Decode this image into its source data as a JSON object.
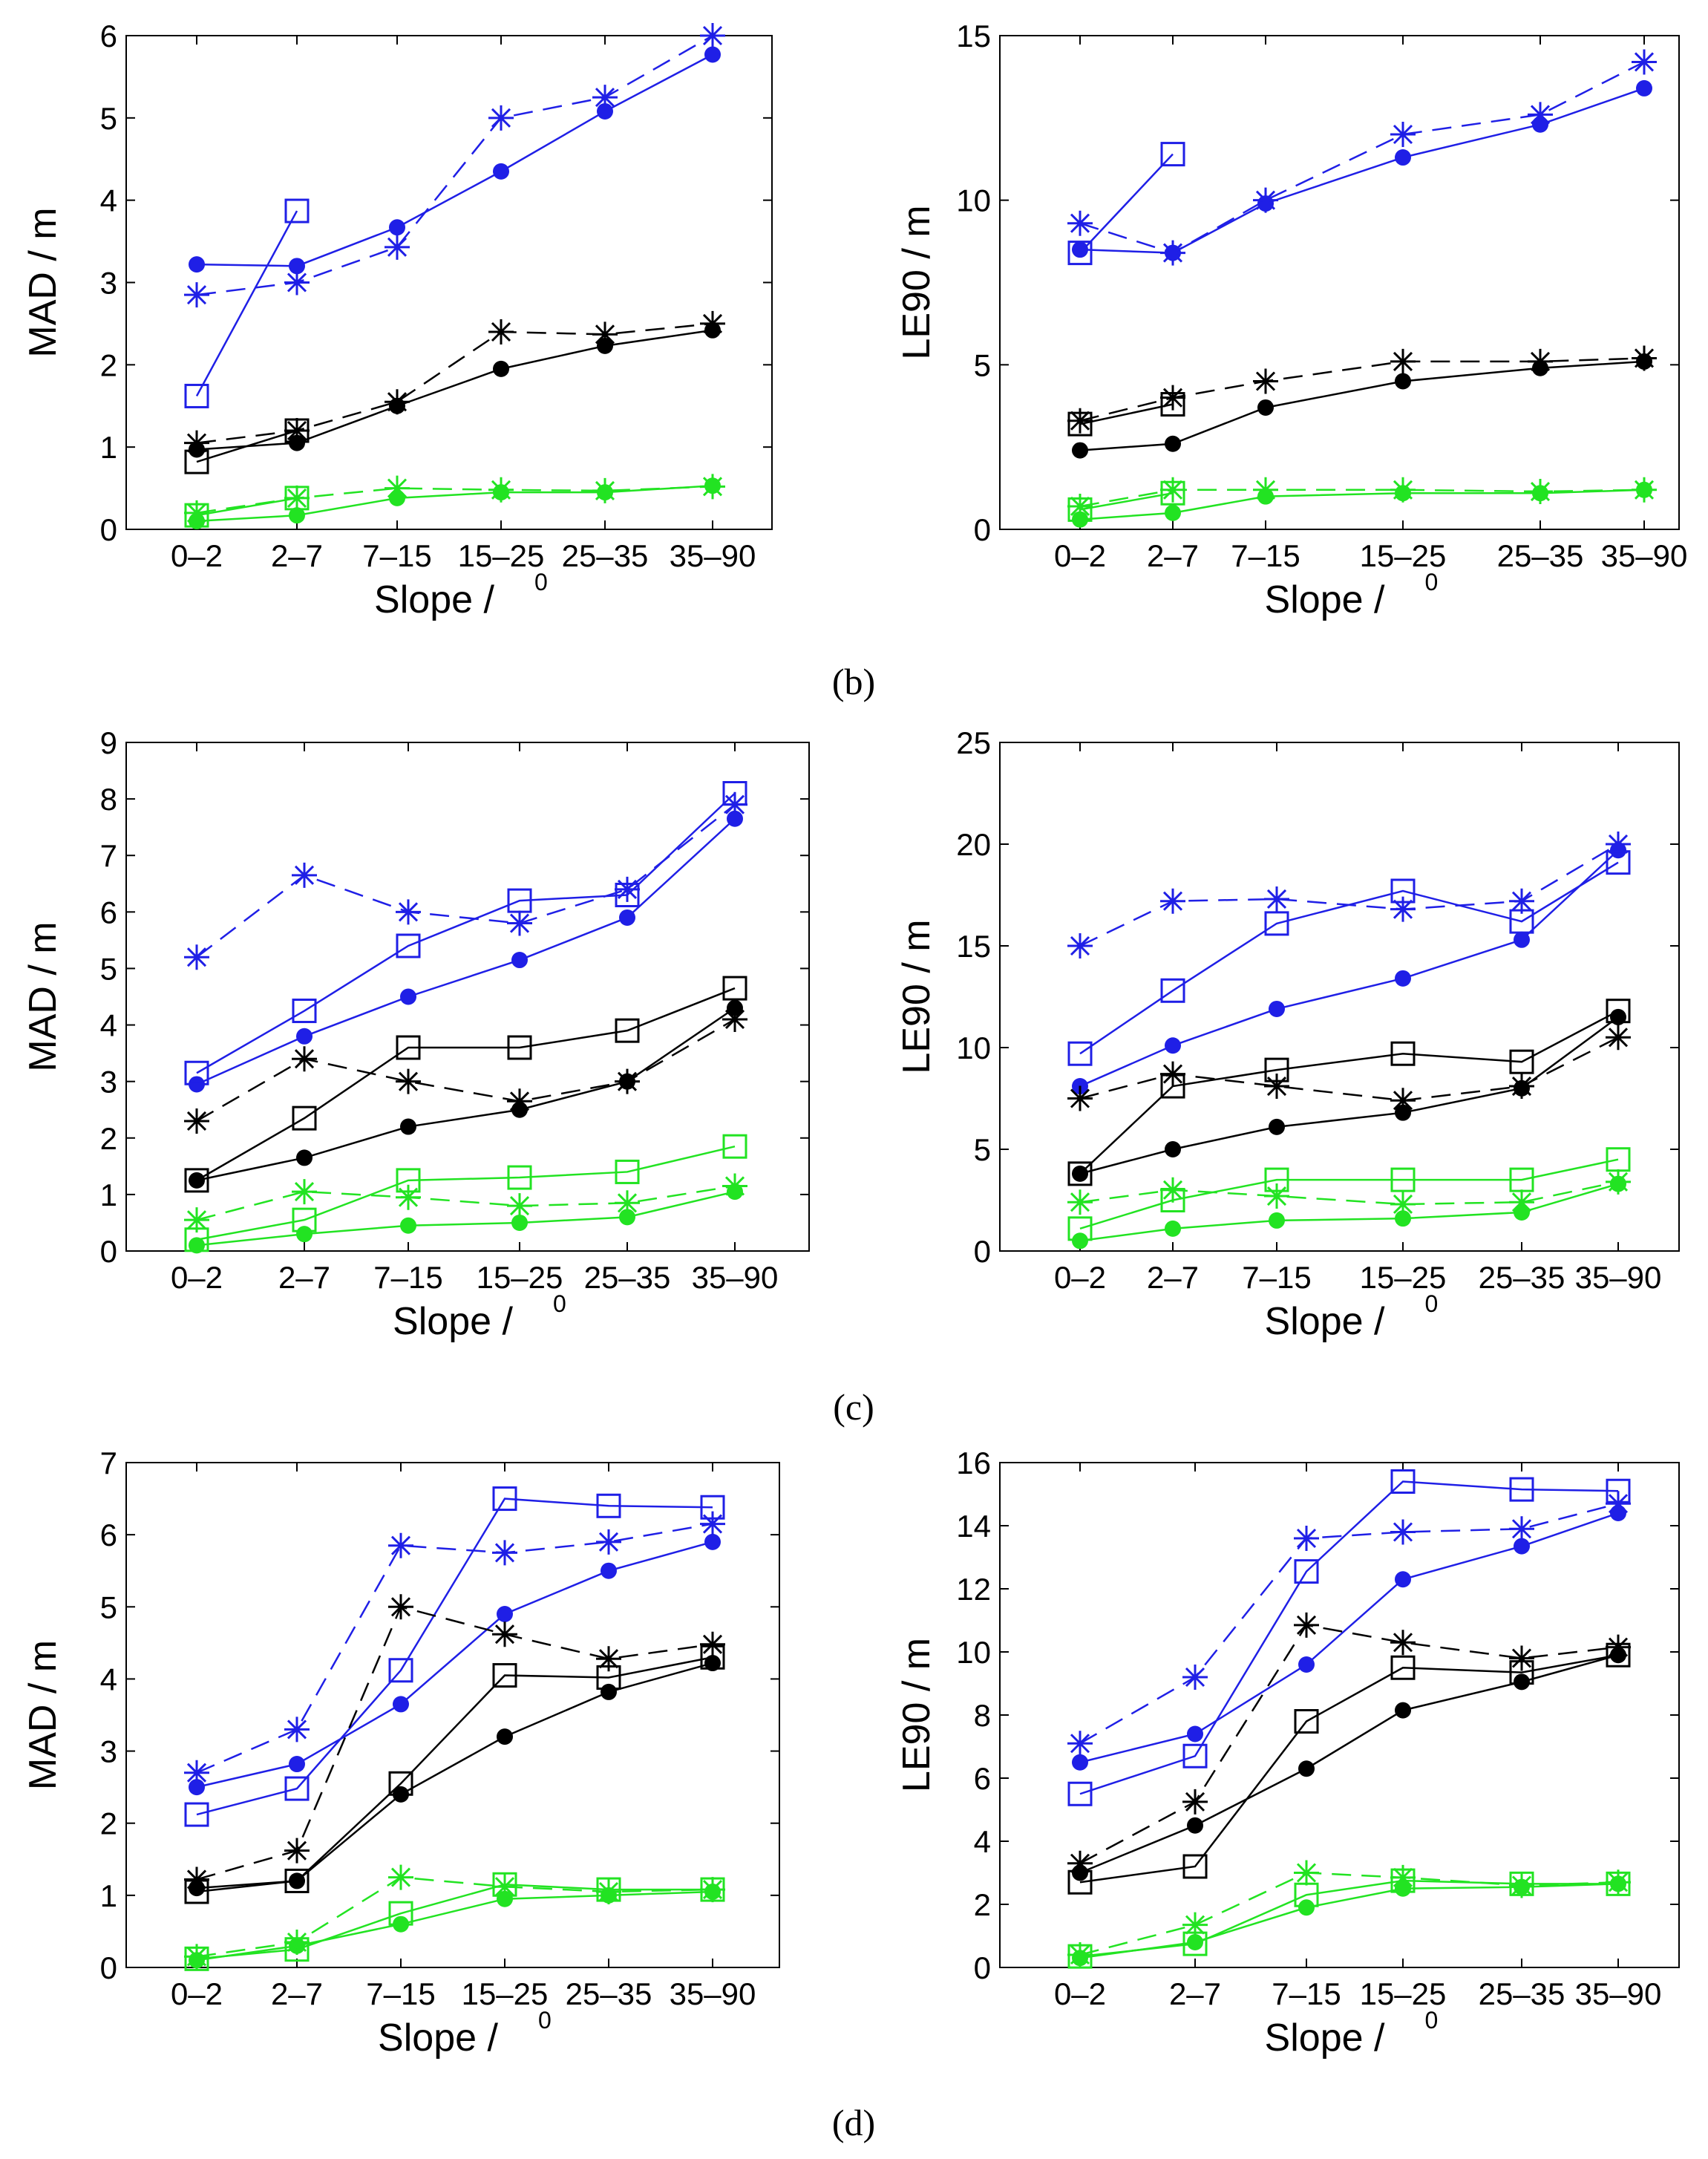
{
  "figure": {
    "captions": [
      "(b)",
      "(c)",
      "(d)"
    ]
  },
  "series_legend": {
    "colors": {
      "blue": "#1f1fe6",
      "black": "#000000",
      "green": "#22e322"
    },
    "markers": [
      "filled-circle",
      "asterisk",
      "open-square"
    ]
  },
  "chart_data": [
    {
      "type": "line",
      "panel": "b-left",
      "categories": [
        "0–2",
        "2–7",
        "7–15",
        "15–25",
        "25–35",
        "35–90"
      ],
      "xlabel": "Slope /",
      "xlabel_sup": "0",
      "ylabel": "MAD / m",
      "ylim": [
        0,
        6
      ],
      "yticks": [
        0,
        1,
        2,
        3,
        4,
        5,
        6
      ],
      "ytick_labels": [
        "0",
        "1",
        "2",
        "3",
        "4",
        "5",
        "6"
      ],
      "series": [
        {
          "color": "#1f1fe6",
          "marker": "circle",
          "dash": false,
          "values": [
            3.22,
            3.2,
            3.67,
            4.35,
            5.08,
            5.77
          ]
        },
        {
          "color": "#1f1fe6",
          "marker": "star",
          "dash": true,
          "values": [
            2.85,
            3.0,
            3.43,
            5.0,
            5.25,
            6.0
          ]
        },
        {
          "color": "#1f1fe6",
          "marker": "square",
          "dash": false,
          "values": [
            1.62,
            3.87,
            null,
            null,
            null,
            null
          ]
        },
        {
          "color": "#000000",
          "marker": "circle",
          "dash": false,
          "values": [
            0.97,
            1.05,
            1.5,
            1.95,
            2.23,
            2.42
          ]
        },
        {
          "color": "#000000",
          "marker": "star",
          "dash": true,
          "values": [
            1.05,
            1.2,
            1.55,
            2.4,
            2.37,
            2.5
          ]
        },
        {
          "color": "#000000",
          "marker": "square",
          "dash": false,
          "values": [
            0.82,
            1.2,
            null,
            null,
            null,
            null
          ]
        },
        {
          "color": "#22e322",
          "marker": "circle",
          "dash": false,
          "values": [
            0.1,
            0.17,
            0.38,
            0.45,
            0.45,
            0.53
          ]
        },
        {
          "color": "#22e322",
          "marker": "star",
          "dash": true,
          "values": [
            0.2,
            0.38,
            0.5,
            0.48,
            0.47,
            0.52
          ]
        },
        {
          "color": "#22e322",
          "marker": "square",
          "dash": false,
          "values": [
            0.17,
            0.38,
            null,
            null,
            null,
            null
          ]
        }
      ]
    },
    {
      "type": "line",
      "panel": "b-right",
      "categories": [
        "0–2",
        "2–7",
        "7–15",
        "15–25",
        "25–35",
        "35–90"
      ],
      "xlabel": "Slope /",
      "xlabel_sup": "0",
      "ylabel": "LE90 / m",
      "ylim": [
        0,
        15
      ],
      "yticks": [
        0,
        5,
        10,
        15
      ],
      "ytick_labels": [
        "0",
        "5",
        "10",
        "15"
      ],
      "series": [
        {
          "color": "#1f1fe6",
          "marker": "circle",
          "dash": false,
          "values": [
            8.5,
            8.4,
            9.9,
            11.3,
            12.3,
            13.4
          ]
        },
        {
          "color": "#1f1fe6",
          "marker": "star",
          "dash": true,
          "values": [
            9.3,
            8.4,
            10.0,
            12.0,
            12.6,
            14.2
          ]
        },
        {
          "color": "#1f1fe6",
          "marker": "square",
          "dash": false,
          "values": [
            8.4,
            11.4,
            null,
            null,
            null,
            null
          ]
        },
        {
          "color": "#000000",
          "marker": "circle",
          "dash": false,
          "values": [
            2.4,
            2.6,
            3.7,
            4.5,
            4.9,
            5.1
          ]
        },
        {
          "color": "#000000",
          "marker": "star",
          "dash": true,
          "values": [
            3.3,
            4.0,
            4.5,
            5.1,
            5.1,
            5.2
          ]
        },
        {
          "color": "#000000",
          "marker": "square",
          "dash": false,
          "values": [
            3.2,
            3.8,
            null,
            null,
            null,
            null
          ]
        },
        {
          "color": "#22e322",
          "marker": "circle",
          "dash": false,
          "values": [
            0.3,
            0.5,
            1.0,
            1.1,
            1.1,
            1.2
          ]
        },
        {
          "color": "#22e322",
          "marker": "star",
          "dash": true,
          "values": [
            0.7,
            1.2,
            1.2,
            1.2,
            1.15,
            1.2
          ]
        },
        {
          "color": "#22e322",
          "marker": "square",
          "dash": false,
          "values": [
            0.6,
            1.1,
            null,
            null,
            null,
            null
          ]
        }
      ]
    },
    {
      "type": "line",
      "panel": "c-left",
      "categories": [
        "0–2",
        "2–7",
        "7–15",
        "15–25",
        "25–35",
        "35–90"
      ],
      "xlabel": "Slope /",
      "xlabel_sup": "0",
      "ylabel": "MAD / m",
      "ylim": [
        0,
        9
      ],
      "yticks": [
        0,
        1,
        2,
        3,
        4,
        5,
        6,
        7,
        8,
        9
      ],
      "ytick_labels": [
        "0",
        "1",
        "2",
        "3",
        "4",
        "5",
        "6",
        "7",
        "8",
        "9"
      ],
      "series": [
        {
          "color": "#1f1fe6",
          "marker": "circle",
          "dash": false,
          "values": [
            2.95,
            3.8,
            4.5,
            5.15,
            5.9,
            7.65
          ]
        },
        {
          "color": "#1f1fe6",
          "marker": "star",
          "dash": true,
          "values": [
            5.2,
            6.65,
            6.0,
            5.8,
            6.4,
            7.9
          ]
        },
        {
          "color": "#1f1fe6",
          "marker": "square",
          "dash": false,
          "values": [
            3.15,
            4.25,
            5.4,
            6.2,
            6.3,
            8.1
          ]
        },
        {
          "color": "#000000",
          "marker": "circle",
          "dash": false,
          "values": [
            1.25,
            1.65,
            2.2,
            2.5,
            3.0,
            4.3
          ]
        },
        {
          "color": "#000000",
          "marker": "star",
          "dash": true,
          "values": [
            2.3,
            3.4,
            3.0,
            2.65,
            3.0,
            4.1
          ]
        },
        {
          "color": "#000000",
          "marker": "square",
          "dash": false,
          "values": [
            1.25,
            2.35,
            3.6,
            3.6,
            3.9,
            4.65
          ]
        },
        {
          "color": "#22e322",
          "marker": "circle",
          "dash": false,
          "values": [
            0.1,
            0.3,
            0.45,
            0.5,
            0.6,
            1.05
          ]
        },
        {
          "color": "#22e322",
          "marker": "star",
          "dash": true,
          "values": [
            0.55,
            1.05,
            0.95,
            0.8,
            0.85,
            1.15
          ]
        },
        {
          "color": "#22e322",
          "marker": "square",
          "dash": false,
          "values": [
            0.2,
            0.55,
            1.25,
            1.3,
            1.4,
            1.85
          ]
        }
      ]
    },
    {
      "type": "line",
      "panel": "c-right",
      "categories": [
        "0–2",
        "2–7",
        "7–15",
        "15–25",
        "25–35",
        "35–90"
      ],
      "xlabel": "Slope /",
      "xlabel_sup": "0",
      "ylabel": "LE90 / m",
      "ylim": [
        0,
        25
      ],
      "yticks": [
        0,
        5,
        10,
        15,
        20,
        25
      ],
      "ytick_labels": [
        "0",
        "5",
        "10",
        "15",
        "20",
        "25"
      ],
      "series": [
        {
          "color": "#1f1fe6",
          "marker": "circle",
          "dash": false,
          "values": [
            8.1,
            10.1,
            11.9,
            13.4,
            15.3,
            19.7
          ]
        },
        {
          "color": "#1f1fe6",
          "marker": "star",
          "dash": true,
          "values": [
            15.0,
            17.2,
            17.3,
            16.8,
            17.2,
            20.0
          ]
        },
        {
          "color": "#1f1fe6",
          "marker": "square",
          "dash": false,
          "values": [
            9.7,
            12.8,
            16.1,
            17.7,
            16.2,
            19.1
          ]
        },
        {
          "color": "#000000",
          "marker": "circle",
          "dash": false,
          "values": [
            3.8,
            5.0,
            6.1,
            6.8,
            8.0,
            11.5
          ]
        },
        {
          "color": "#000000",
          "marker": "star",
          "dash": true,
          "values": [
            7.5,
            8.7,
            8.1,
            7.4,
            8.1,
            10.5
          ]
        },
        {
          "color": "#000000",
          "marker": "square",
          "dash": false,
          "values": [
            3.8,
            8.1,
            8.9,
            9.7,
            9.3,
            11.8
          ]
        },
        {
          "color": "#22e322",
          "marker": "circle",
          "dash": false,
          "values": [
            0.5,
            1.1,
            1.5,
            1.6,
            1.9,
            3.3
          ]
        },
        {
          "color": "#22e322",
          "marker": "star",
          "dash": true,
          "values": [
            2.4,
            3.0,
            2.7,
            2.3,
            2.4,
            3.4
          ]
        },
        {
          "color": "#22e322",
          "marker": "square",
          "dash": false,
          "values": [
            1.1,
            2.5,
            3.5,
            3.5,
            3.5,
            4.5
          ]
        }
      ]
    },
    {
      "type": "line",
      "panel": "d-left",
      "categories": [
        "0–2",
        "2–7",
        "7–15",
        "15–25",
        "25–35",
        "35–90"
      ],
      "xlabel": "Slope /",
      "xlabel_sup": "0",
      "ylabel": "MAD / m",
      "ylim": [
        0,
        7
      ],
      "yticks": [
        0,
        1,
        2,
        3,
        4,
        5,
        6,
        7
      ],
      "ytick_labels": [
        "0",
        "1",
        "2",
        "3",
        "4",
        "5",
        "6",
        "7"
      ],
      "series": [
        {
          "color": "#1f1fe6",
          "marker": "circle",
          "dash": false,
          "values": [
            2.5,
            2.82,
            3.65,
            4.9,
            5.5,
            5.9
          ]
        },
        {
          "color": "#1f1fe6",
          "marker": "star",
          "dash": true,
          "values": [
            2.7,
            3.3,
            5.85,
            5.75,
            5.9,
            6.15
          ]
        },
        {
          "color": "#1f1fe6",
          "marker": "square",
          "dash": false,
          "values": [
            2.12,
            2.48,
            4.12,
            6.5,
            6.4,
            6.38
          ]
        },
        {
          "color": "#000000",
          "marker": "circle",
          "dash": false,
          "values": [
            1.1,
            1.2,
            2.4,
            3.2,
            3.82,
            4.22
          ]
        },
        {
          "color": "#000000",
          "marker": "star",
          "dash": true,
          "values": [
            1.22,
            1.62,
            5.0,
            4.62,
            4.28,
            4.48
          ]
        },
        {
          "color": "#000000",
          "marker": "square",
          "dash": false,
          "values": [
            1.05,
            1.2,
            2.55,
            4.05,
            4.02,
            4.3
          ]
        },
        {
          "color": "#22e322",
          "marker": "circle",
          "dash": false,
          "values": [
            0.1,
            0.3,
            0.6,
            0.95,
            1.0,
            1.05
          ]
        },
        {
          "color": "#22e322",
          "marker": "star",
          "dash": true,
          "values": [
            0.15,
            0.35,
            1.25,
            1.12,
            1.05,
            1.08
          ]
        },
        {
          "color": "#22e322",
          "marker": "square",
          "dash": false,
          "values": [
            0.12,
            0.25,
            0.75,
            1.15,
            1.08,
            1.08
          ]
        }
      ]
    },
    {
      "type": "line",
      "panel": "d-right",
      "categories": [
        "0–2",
        "2–7",
        "7–15",
        "15–25",
        "25–35",
        "35–90"
      ],
      "xlabel": "Slope /",
      "xlabel_sup": "0",
      "ylabel": "LE90 / m",
      "ylim": [
        0,
        16
      ],
      "yticks": [
        0,
        2,
        4,
        6,
        8,
        10,
        12,
        14,
        16
      ],
      "ytick_labels": [
        "0",
        "2",
        "4",
        "6",
        "8",
        "10",
        "12",
        "14",
        "16"
      ],
      "series": [
        {
          "color": "#1f1fe6",
          "marker": "circle",
          "dash": false,
          "values": [
            6.5,
            7.4,
            9.6,
            12.3,
            13.35,
            14.4
          ]
        },
        {
          "color": "#1f1fe6",
          "marker": "star",
          "dash": true,
          "values": [
            7.1,
            9.2,
            13.6,
            13.8,
            13.9,
            14.7
          ]
        },
        {
          "color": "#1f1fe6",
          "marker": "square",
          "dash": false,
          "values": [
            5.5,
            6.7,
            12.55,
            15.4,
            15.15,
            15.1
          ]
        },
        {
          "color": "#000000",
          "marker": "circle",
          "dash": false,
          "values": [
            3.0,
            4.5,
            6.3,
            8.15,
            9.05,
            9.9
          ]
        },
        {
          "color": "#000000",
          "marker": "star",
          "dash": true,
          "values": [
            3.3,
            5.25,
            10.85,
            10.3,
            9.8,
            10.15
          ]
        },
        {
          "color": "#000000",
          "marker": "square",
          "dash": false,
          "values": [
            2.7,
            3.2,
            7.8,
            9.5,
            9.35,
            9.9
          ]
        },
        {
          "color": "#22e322",
          "marker": "circle",
          "dash": false,
          "values": [
            0.3,
            0.8,
            1.9,
            2.5,
            2.55,
            2.65
          ]
        },
        {
          "color": "#22e322",
          "marker": "star",
          "dash": true,
          "values": [
            0.4,
            1.35,
            3.0,
            2.85,
            2.6,
            2.7
          ]
        },
        {
          "color": "#22e322",
          "marker": "square",
          "dash": false,
          "values": [
            0.35,
            0.75,
            2.3,
            2.75,
            2.65,
            2.65
          ]
        }
      ]
    }
  ]
}
